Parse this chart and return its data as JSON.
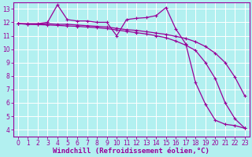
{
  "background_color": "#b2f0f0",
  "grid_color": "#ffffff",
  "line_color": "#990099",
  "xlabel": "Windchill (Refroidissement éolien,°C)",
  "xlabel_fontsize": 6.5,
  "ylabel_values": [
    4,
    5,
    6,
    7,
    8,
    9,
    10,
    11,
    12,
    13
  ],
  "xlim": [
    -0.5,
    23.5
  ],
  "ylim": [
    3.5,
    13.5
  ],
  "xtick_labels": [
    "0",
    "1",
    "2",
    "3",
    "4",
    "5",
    "6",
    "7",
    "8",
    "9",
    "10",
    "11",
    "12",
    "13",
    "14",
    "15",
    "16",
    "17",
    "18",
    "19",
    "20",
    "21",
    "22",
    "23"
  ],
  "tick_fontsize": 5.5,
  "linewidth": 0.9,
  "markersize": 3.0,
  "markeredgewidth": 0.8,
  "line1_x": [
    0,
    1,
    2,
    3,
    4,
    5,
    6,
    7,
    8,
    9,
    10,
    11,
    12,
    13,
    14,
    15,
    16,
    17,
    18,
    19,
    20,
    21,
    22,
    23
  ],
  "line1_y": [
    11.9,
    11.9,
    11.9,
    12.0,
    13.3,
    12.2,
    12.1,
    12.1,
    12.0,
    12.0,
    11.0,
    12.2,
    12.3,
    12.35,
    12.5,
    13.1,
    11.5,
    10.4,
    7.5,
    5.9,
    4.7,
    4.4,
    4.3,
    4.1
  ],
  "line2_x": [
    0,
    1,
    2,
    3,
    4,
    5,
    6,
    7,
    8,
    9,
    10,
    11,
    12,
    13,
    14,
    15,
    16,
    17,
    18,
    19,
    20,
    21,
    22,
    23
  ],
  "line2_y": [
    11.9,
    11.85,
    11.85,
    11.9,
    11.85,
    11.85,
    11.8,
    11.75,
    11.7,
    11.65,
    11.55,
    11.45,
    11.4,
    11.3,
    11.2,
    11.1,
    10.95,
    10.8,
    10.55,
    10.2,
    9.7,
    9.0,
    7.9,
    6.5
  ],
  "line3_x": [
    0,
    1,
    2,
    3,
    4,
    5,
    6,
    7,
    8,
    9,
    10,
    11,
    12,
    13,
    14,
    15,
    16,
    17,
    18,
    19,
    20,
    21,
    22,
    23
  ],
  "line3_y": [
    11.9,
    11.87,
    11.83,
    11.8,
    11.77,
    11.73,
    11.7,
    11.65,
    11.6,
    11.53,
    11.43,
    11.33,
    11.23,
    11.13,
    11.0,
    10.85,
    10.6,
    10.3,
    9.9,
    9.0,
    7.8,
    6.0,
    4.8,
    4.1
  ]
}
